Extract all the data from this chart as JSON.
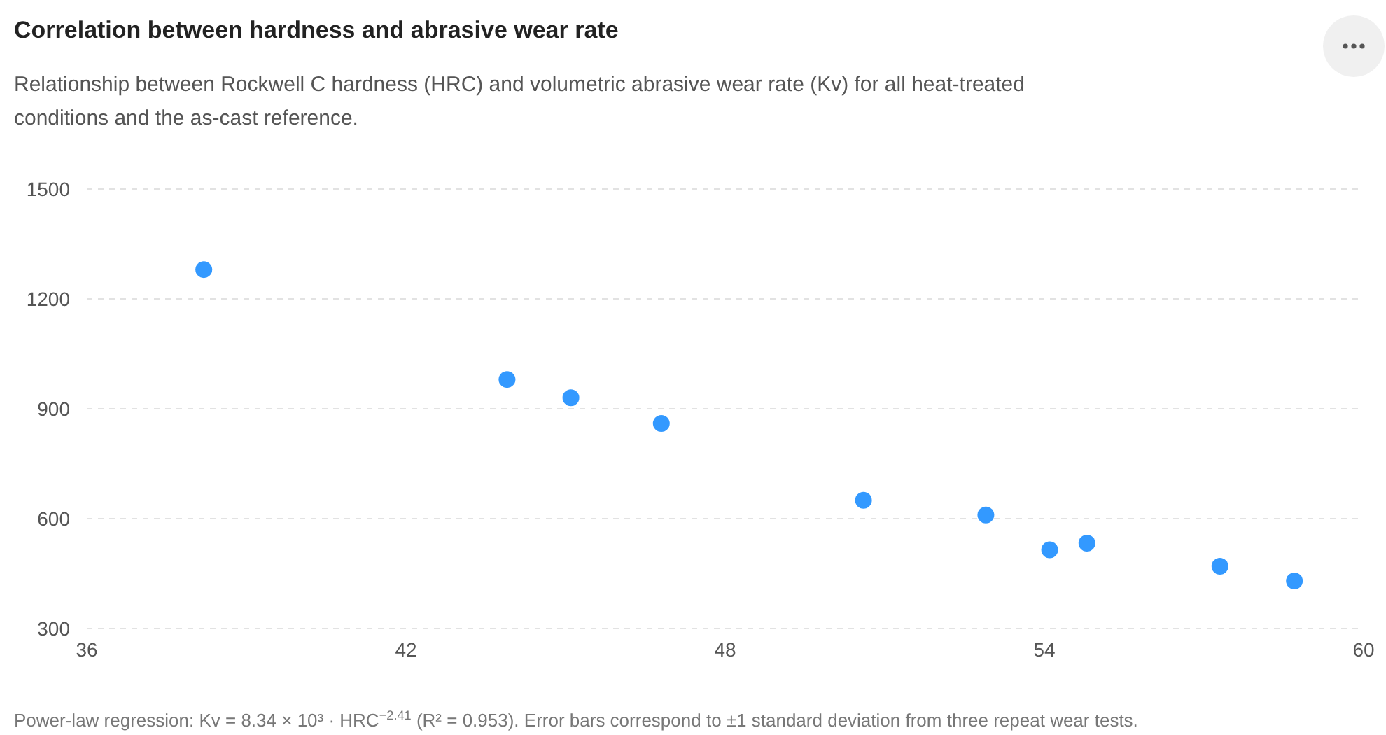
{
  "chart_data": {
    "type": "scatter",
    "title": "Correlation between hardness and abrasive wear rate",
    "subtitle": "Relationship between Rockwell C hardness (HRC) and volumetric abrasive wear rate (Kv) for all heat-treated conditions and the as-cast reference.",
    "x": [
      38.2,
      43.9,
      45.1,
      46.8,
      50.6,
      52.9,
      54.1,
      54.8,
      57.3,
      58.7
    ],
    "series": [
      {
        "color": "#3399ff",
        "values": [
          1280,
          980,
          930,
          860,
          650,
          610,
          515,
          533,
          470,
          430
        ]
      }
    ],
    "xlim": [
      36,
      60
    ],
    "xticks": [
      36,
      42,
      48,
      54,
      60
    ],
    "ylim": [
      300,
      1500
    ],
    "yticks": [
      300,
      600,
      900,
      1200,
      1500
    ],
    "grid": "y",
    "marker": "circle",
    "annotations": [
      "Power-law regression: Kv = 8.34 × 10³ · HRC$^{−2.41}$ (R² = 0.953). Error bars correspond to ±1 standard deviation from three repeat wear tests."
    ]
  }
}
